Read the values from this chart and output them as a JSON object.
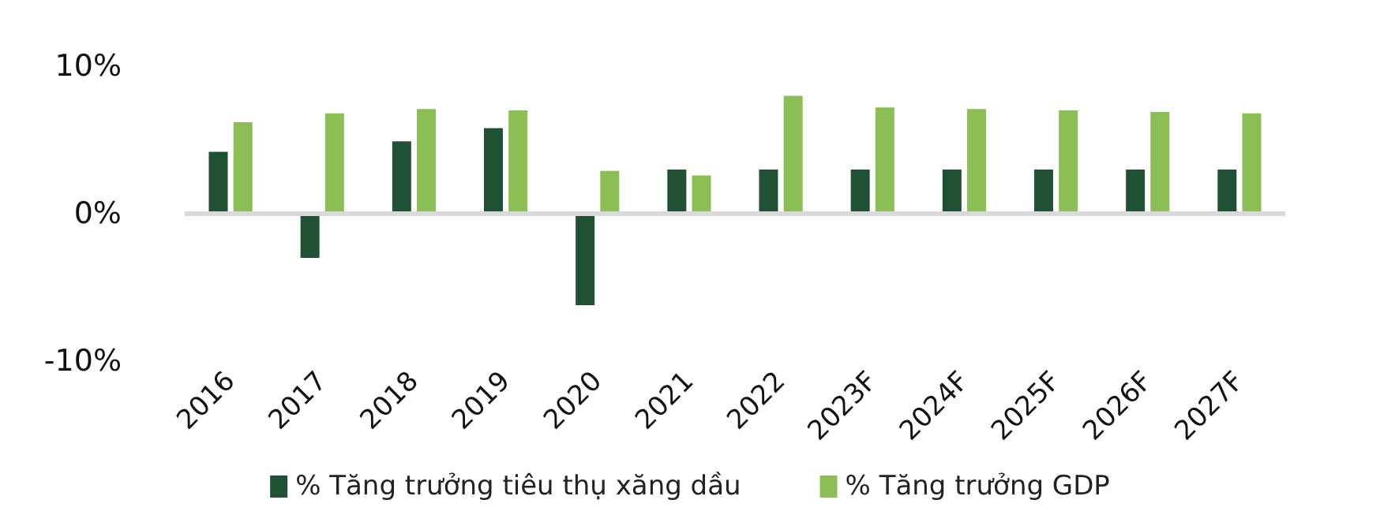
{
  "chart_data": {
    "type": "bar",
    "categories": [
      "2016",
      "2017",
      "2018",
      "2019",
      "2020",
      "2021",
      "2022",
      "2023F",
      "2024F",
      "2025F",
      "2026F",
      "2027F"
    ],
    "series": [
      {
        "name": "% Tăng trưởng tiêu thụ xăng dầu",
        "color": "#215135",
        "values": [
          4.2,
          -3.0,
          4.9,
          5.8,
          -6.2,
          3.0,
          3.0,
          3.0,
          3.0,
          3.0,
          3.0,
          3.0
        ]
      },
      {
        "name": "% Tăng trưởng GDP",
        "color": "#8bbf56",
        "values": [
          6.2,
          6.8,
          7.1,
          7.0,
          2.9,
          2.6,
          8.0,
          7.2,
          7.1,
          7.0,
          6.9,
          6.8
        ]
      }
    ],
    "ylim": [
      -10,
      10
    ],
    "yticks": [
      {
        "value": -10,
        "label": "-10%"
      },
      {
        "value": 0,
        "label": "0%"
      },
      {
        "value": 10,
        "label": "10%"
      }
    ],
    "ref_lines": [
      {
        "axis": "y",
        "value": 0,
        "color": "#d9d9d9"
      }
    ],
    "grid": false,
    "legend": "bottom"
  }
}
